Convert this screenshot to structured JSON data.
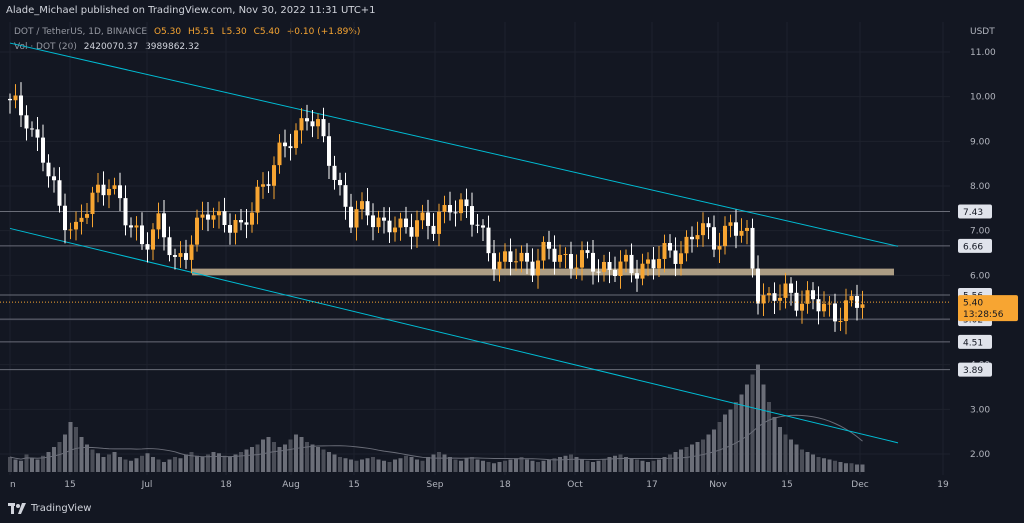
{
  "header": {
    "published": "Alade_Michael published on TradingView.com, Nov 30, 2022 11:31 UTC+1"
  },
  "legend": {
    "symbol": "DOT / TetherUS, 1D, BINANCE",
    "open": "O5.30",
    "high": "H5.51",
    "low": "L5.30",
    "close": "C5.40",
    "change": "+0.10 (+1.89%)",
    "vol_label": "Vol · DOT (20)",
    "vol_value": "2420070.37",
    "vol_ma": "3989862.32"
  },
  "axis": {
    "currency": "USDT",
    "y_labels": [
      "11.00",
      "10.00",
      "9.00",
      "8.00",
      "7.00",
      "6.00",
      "5.00",
      "4.00",
      "3.00",
      "2.00"
    ],
    "x_labels": [
      "n",
      "15",
      "Jul",
      "18",
      "Aug",
      "15",
      "Sep",
      "18",
      "Oct",
      "17",
      "Nov",
      "15",
      "Dec",
      "19"
    ]
  },
  "price_tags": {
    "levels": [
      "7.43",
      "6.66",
      "5.56",
      "5.02",
      "4.51",
      "3.89"
    ],
    "current": "5.40",
    "countdown": "13:28:56"
  },
  "colors": {
    "background": "#131722",
    "up_candle": "#f7a532",
    "down_candle": "#ffffff",
    "channel": "#00bcd4",
    "zone": "#c8b595",
    "grid": "#1e222d"
  },
  "footer": {
    "brand": "TradingView",
    "icon": "tradingview-logo-icon"
  },
  "chart_data": {
    "type": "candlestick",
    "symbol": "DOT/USDT",
    "timeframe": "1D",
    "exchange": "BINANCE",
    "x_labels": [
      "n",
      "15",
      "Jul",
      "18",
      "Aug",
      "15",
      "Sep",
      "18",
      "Oct",
      "17",
      "Nov",
      "15",
      "Dec",
      "19"
    ],
    "close_anchors": [
      [
        0,
        9.8
      ],
      [
        3,
        9.6
      ],
      [
        6,
        8.6
      ],
      [
        9,
        7.5
      ],
      [
        12,
        7.0
      ],
      [
        15,
        7.7
      ],
      [
        18,
        8.2
      ],
      [
        21,
        7.2
      ],
      [
        24,
        6.8
      ],
      [
        27,
        7.1
      ],
      [
        30,
        6.3
      ],
      [
        33,
        6.8
      ],
      [
        36,
        7.4
      ],
      [
        39,
        7.3
      ],
      [
        42,
        6.9
      ],
      [
        45,
        7.9
      ],
      [
        48,
        8.4
      ],
      [
        51,
        9.1
      ],
      [
        54,
        9.6
      ],
      [
        56,
        9.2
      ],
      [
        58,
        8.7
      ],
      [
        60,
        7.9
      ],
      [
        62,
        7.2
      ],
      [
        65,
        7.5
      ],
      [
        68,
        7.1
      ],
      [
        71,
        7.0
      ],
      [
        74,
        7.3
      ],
      [
        77,
        7.0
      ],
      [
        80,
        7.7
      ],
      [
        83,
        7.4
      ],
      [
        86,
        6.9
      ],
      [
        89,
        6.2
      ],
      [
        92,
        6.4
      ],
      [
        95,
        6.3
      ],
      [
        98,
        6.5
      ],
      [
        101,
        6.4
      ],
      [
        104,
        6.3
      ],
      [
        107,
        6.2
      ],
      [
        110,
        6.2
      ],
      [
        113,
        6.1
      ],
      [
        116,
        6.3
      ],
      [
        119,
        6.4
      ],
      [
        122,
        6.6
      ],
      [
        125,
        7.0
      ],
      [
        128,
        6.8
      ],
      [
        131,
        7.1
      ],
      [
        134,
        6.8
      ],
      [
        136,
        5.7
      ],
      [
        138,
        5.4
      ],
      [
        141,
        5.6
      ],
      [
        144,
        5.5
      ],
      [
        147,
        5.3
      ],
      [
        150,
        5.2
      ],
      [
        153,
        5.3
      ],
      [
        155,
        5.4
      ]
    ],
    "volume_relative": [
      0.12,
      0.1,
      0.09,
      0.14,
      0.11,
      0.1,
      0.13,
      0.16,
      0.2,
      0.24,
      0.3,
      0.4,
      0.36,
      0.28,
      0.22,
      0.18,
      0.15,
      0.12,
      0.14,
      0.16,
      0.12,
      0.1,
      0.09,
      0.11,
      0.13,
      0.15,
      0.12,
      0.1,
      0.08,
      0.1,
      0.12,
      0.11,
      0.14,
      0.16,
      0.13,
      0.12,
      0.14,
      0.16,
      0.15,
      0.13,
      0.12,
      0.14,
      0.16,
      0.18,
      0.2,
      0.22,
      0.26,
      0.28,
      0.24,
      0.2,
      0.22,
      0.26,
      0.3,
      0.28,
      0.24,
      0.22,
      0.2,
      0.18,
      0.16,
      0.14,
      0.12,
      0.11,
      0.1,
      0.09,
      0.1,
      0.11,
      0.12,
      0.1,
      0.09,
      0.08,
      0.1,
      0.11,
      0.13,
      0.12,
      0.1,
      0.09,
      0.12,
      0.14,
      0.16,
      0.14,
      0.12,
      0.1,
      0.09,
      0.11,
      0.12,
      0.1,
      0.09,
      0.08,
      0.07,
      0.08,
      0.09,
      0.1,
      0.11,
      0.12,
      0.1,
      0.09,
      0.08,
      0.09,
      0.1,
      0.11,
      0.12,
      0.13,
      0.14,
      0.12,
      0.1,
      0.09,
      0.08,
      0.09,
      0.1,
      0.12,
      0.13,
      0.14,
      0.12,
      0.11,
      0.1,
      0.09,
      0.08,
      0.09,
      0.1,
      0.12,
      0.14,
      0.16,
      0.18,
      0.2,
      0.22,
      0.24,
      0.26,
      0.3,
      0.34,
      0.4,
      0.46,
      0.5,
      0.56,
      0.62,
      0.7,
      0.78,
      0.86,
      0.7,
      0.56,
      0.44,
      0.36,
      0.3,
      0.26,
      0.22,
      0.18,
      0.16,
      0.14,
      0.12,
      0.11,
      0.1,
      0.09,
      0.08,
      0.07,
      0.07,
      0.06,
      0.06
    ],
    "horizontal_levels": [
      7.43,
      6.66,
      5.56,
      5.02,
      4.51,
      3.89
    ],
    "support_zone": [
      6.0,
      6.15
    ],
    "current_price": 5.4,
    "channel": {
      "upper": [
        [
          0,
          11.2
        ],
        [
          170,
          6.65
        ]
      ],
      "lower": [
        [
          0,
          7.05
        ],
        [
          170,
          2.25
        ]
      ]
    },
    "ylim": [
      1.6,
      11.4
    ]
  }
}
